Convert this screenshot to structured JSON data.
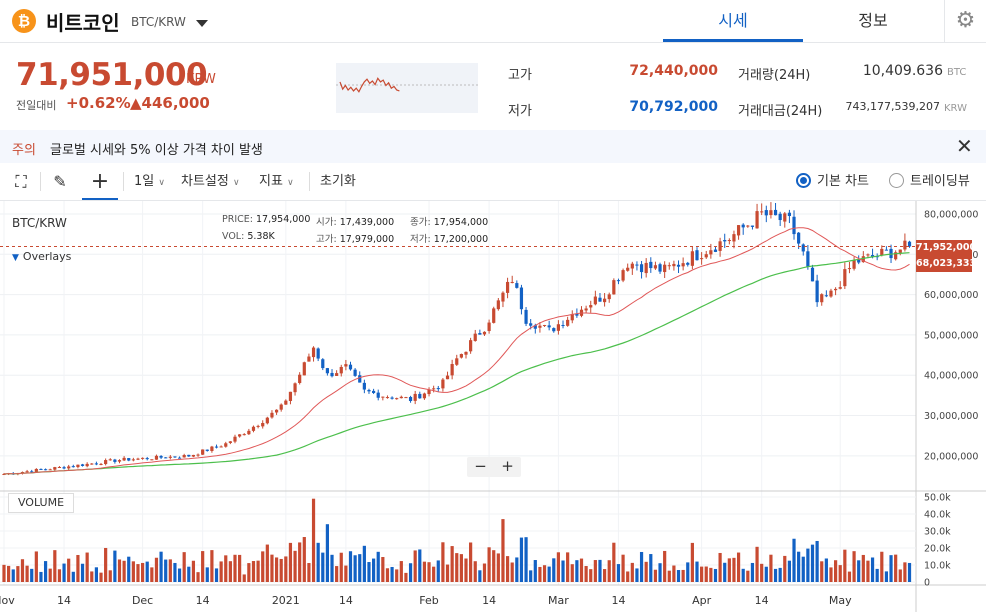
{
  "header": {
    "coin_symbol_glyph": "₿",
    "coin_name": "비트코인",
    "pair": "BTC/KRW",
    "tabs": [
      "시세",
      "정보"
    ],
    "settings_icon": "gear-icon"
  },
  "price": {
    "current": "71,951,000",
    "unit": "KRW",
    "change_label": "전일대비",
    "change_pct": "+0.62%",
    "change_abs": "▲446,000",
    "high_label": "고가",
    "high": "72,440,000",
    "low_label": "저가",
    "low": "70,792,000",
    "volume_label": "거래량(24H)",
    "volume": "10,409.636",
    "volume_unit": "BTC",
    "amount_label": "거래대금(24H)",
    "amount": "743,177,539,207",
    "amount_unit": "KRW"
  },
  "notice": {
    "tag": "주의",
    "text": "글로벌 시세와 5% 이상 가격 차이 발생"
  },
  "toolbar": {
    "interval": "1일",
    "chart_settings": "차트설정",
    "indicators": "지표",
    "reset": "초기화",
    "basic_chart": "기본 차트",
    "tradingview": "트레이딩뷰"
  },
  "chart": {
    "symbol": "BTC/KRW",
    "overlays": "Overlays",
    "price_label": "PRICE:",
    "price_val": "17,954,000",
    "vol_label": "VOL:",
    "vol_val": "5.38K",
    "open_label": "시가:",
    "open_val": "17,439,000",
    "close_label": "종가:",
    "close_val": "17,954,000",
    "high_label": "고가:",
    "high_val": "17,979,000",
    "low_label": "저가:",
    "low_val": "17,200,000",
    "volume_pane": "VOLUME",
    "price_tag_current": "71,952,000",
    "price_tag_ma": "68,023,333",
    "zoom_out": "−",
    "zoom_in": "+"
  },
  "chart_data": {
    "type": "candlestick",
    "y_ticks": [
      "80,000,000",
      "70,000,000",
      "60,000,000",
      "50,000,000",
      "40,000,000",
      "30,000,000",
      "20,000,000"
    ],
    "y_values": [
      80000000,
      70000000,
      60000000,
      50000000,
      40000000,
      30000000,
      20000000
    ],
    "vol_ticks": [
      "50.0k",
      "40.0k",
      "30.0k",
      "20.0k",
      "10.0k",
      "0"
    ],
    "vol_values": [
      50000,
      40000,
      30000,
      20000,
      10000,
      0
    ],
    "x_ticks": [
      "Nov",
      "14",
      "Dec",
      "14",
      "2021",
      "14",
      "Feb",
      "14",
      "Mar",
      "14",
      "Apr",
      "14",
      "May"
    ],
    "x_tick_days": [
      0,
      13,
      30,
      43,
      61,
      74,
      92,
      105,
      120,
      133,
      151,
      164,
      181
    ],
    "start_date": "2020-10-27",
    "key_points": [
      [
        0,
        15500000
      ],
      [
        15,
        17500000
      ],
      [
        25,
        19000000
      ],
      [
        40,
        20000000
      ],
      [
        48,
        23000000
      ],
      [
        55,
        28000000
      ],
      [
        60,
        32000000
      ],
      [
        63,
        38000000
      ],
      [
        67,
        47000000
      ],
      [
        70,
        40000000
      ],
      [
        74,
        42000000
      ],
      [
        78,
        36000000
      ],
      [
        82,
        35000000
      ],
      [
        88,
        34000000
      ],
      [
        95,
        38000000
      ],
      [
        98,
        44000000
      ],
      [
        104,
        52000000
      ],
      [
        108,
        60000000
      ],
      [
        110,
        64000000
      ],
      [
        113,
        54000000
      ],
      [
        118,
        51000000
      ],
      [
        124,
        56000000
      ],
      [
        130,
        60000000
      ],
      [
        135,
        68000000
      ],
      [
        143,
        66000000
      ],
      [
        150,
        70000000
      ],
      [
        157,
        74000000
      ],
      [
        164,
        80000000
      ],
      [
        170,
        78000000
      ],
      [
        173,
        70000000
      ],
      [
        176,
        58000000
      ],
      [
        179,
        60000000
      ],
      [
        184,
        68000000
      ],
      [
        190,
        70000000
      ],
      [
        196,
        71951000
      ]
    ],
    "ma_short_period": 20,
    "ma_long_period": 60,
    "colors": {
      "up": "#c84a31",
      "down": "#1261c4",
      "ma_short": "#e05858",
      "ma_long": "#4cbf4c"
    }
  }
}
